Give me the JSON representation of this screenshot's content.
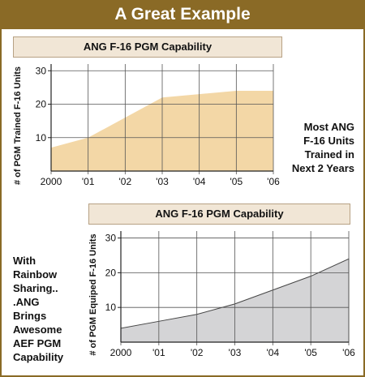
{
  "banner": {
    "title": "A Great Example"
  },
  "notes": {
    "right": [
      "Most ANG",
      "F-16 Units",
      "Trained in",
      "Next 2 Years"
    ],
    "left": [
      "With",
      "Rainbow",
      "Sharing..",
      ".ANG",
      "Brings",
      "Awesome",
      "AEF PGM",
      "Capability"
    ]
  },
  "colors": {
    "banner": "#8a6a26",
    "chart1_fill": "#f3d7a6",
    "chart2_fill": "#d4d4d6",
    "title_box": "#f1e6d6"
  },
  "chart_data": [
    {
      "type": "area",
      "title": "ANG F-16 PGM Capability",
      "ylabel": "# of PGM Trained F-16 Units",
      "xlabel": "",
      "x_ticks": [
        "2000",
        "'01",
        "'02",
        "'03",
        "'04",
        "'05",
        "'06"
      ],
      "y_ticks": [
        "10",
        "20",
        "30"
      ],
      "ylim": [
        0,
        32
      ],
      "grid": true,
      "series": [
        {
          "x": [
            2000,
            2001,
            2003,
            2005,
            2006
          ],
          "values": [
            7,
            10,
            22,
            24,
            24
          ]
        }
      ]
    },
    {
      "type": "area",
      "title": "ANG F-16 PGM Capability",
      "ylabel": "# of PGM Equiped F-16 Units",
      "xlabel": "",
      "x_ticks": [
        "2000",
        "'01",
        "'02",
        "'03",
        "'04",
        "'05",
        "'06"
      ],
      "y_ticks": [
        "10",
        "20",
        "30"
      ],
      "ylim": [
        0,
        32
      ],
      "grid": true,
      "series": [
        {
          "x": [
            2000,
            2001,
            2002,
            2003,
            2004,
            2005,
            2006
          ],
          "values": [
            4,
            6,
            8,
            11,
            15,
            19,
            24
          ]
        }
      ]
    }
  ]
}
